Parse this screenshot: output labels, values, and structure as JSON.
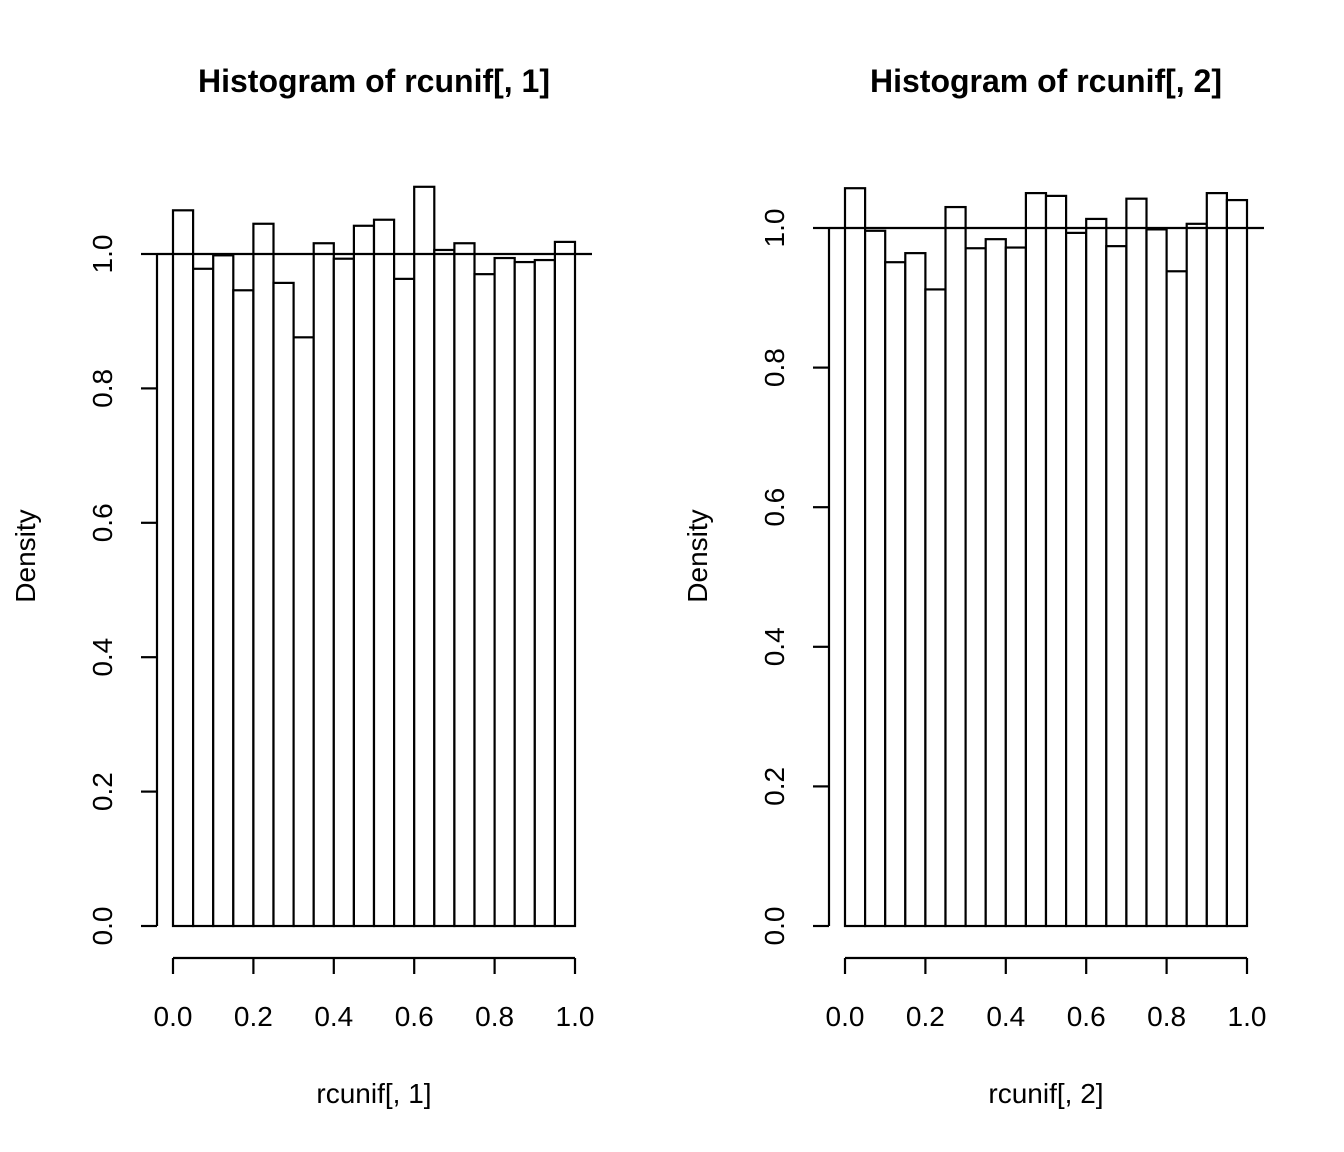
{
  "chart_data": [
    {
      "type": "bar",
      "title": "Histogram of rcunif[, 1]",
      "xlabel": "rcunif[, 1]",
      "ylabel": "Density",
      "xlim": [
        0,
        1
      ],
      "ylim": [
        0,
        1.1
      ],
      "bin_edges": [
        0.0,
        0.05,
        0.1,
        0.15,
        0.2,
        0.25,
        0.3,
        0.35,
        0.4,
        0.45,
        0.5,
        0.55,
        0.6,
        0.65,
        0.7,
        0.75,
        0.8,
        0.85,
        0.9,
        0.95,
        1.0
      ],
      "values": [
        1.065,
        0.978,
        0.998,
        0.946,
        1.045,
        0.957,
        0.876,
        1.016,
        0.993,
        1.042,
        1.051,
        0.963,
        1.1,
        1.006,
        1.016,
        0.97,
        0.994,
        0.988,
        0.991,
        1.018
      ],
      "reference_line": 1.0,
      "xticks": [
        0.0,
        0.2,
        0.4,
        0.6,
        0.8,
        1.0
      ],
      "xtick_labels": [
        "0.0",
        "0.2",
        "0.4",
        "0.6",
        "0.8",
        "1.0"
      ],
      "yticks": [
        0.0,
        0.2,
        0.4,
        0.6,
        0.8,
        1.0
      ],
      "ytick_labels": [
        "0.0",
        "0.2",
        "0.4",
        "0.6",
        "0.8",
        "1.0"
      ],
      "grid": false
    },
    {
      "type": "bar",
      "title": "Histogram of rcunif[, 2]",
      "xlabel": "rcunif[, 2]",
      "ylabel": "Density",
      "xlim": [
        0,
        1
      ],
      "ylim": [
        0,
        1.06
      ],
      "bin_edges": [
        0.0,
        0.05,
        0.1,
        0.15,
        0.2,
        0.25,
        0.3,
        0.35,
        0.4,
        0.45,
        0.5,
        0.55,
        0.6,
        0.65,
        0.7,
        0.75,
        0.8,
        0.85,
        0.9,
        0.95,
        1.0
      ],
      "values": [
        1.057,
        0.996,
        0.951,
        0.964,
        0.912,
        1.03,
        0.971,
        0.984,
        0.972,
        1.05,
        1.046,
        0.993,
        1.013,
        0.974,
        1.042,
        0.998,
        0.938,
        1.006,
        1.05,
        1.04
      ],
      "reference_line": 1.0,
      "xticks": [
        0.0,
        0.2,
        0.4,
        0.6,
        0.8,
        1.0
      ],
      "xtick_labels": [
        "0.0",
        "0.2",
        "0.4",
        "0.6",
        "0.8",
        "1.0"
      ],
      "yticks": [
        0.0,
        0.2,
        0.4,
        0.6,
        0.8,
        1.0
      ],
      "ytick_labels": [
        "0.0",
        "0.2",
        "0.4",
        "0.6",
        "0.8",
        "1.0"
      ],
      "grid": false
    }
  ]
}
